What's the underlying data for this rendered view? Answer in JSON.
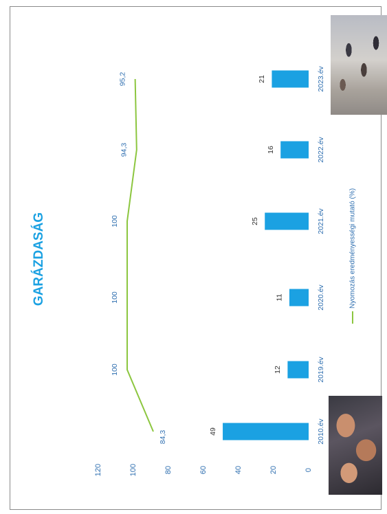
{
  "chart_data": {
    "type": "bar",
    "orientation": "rotated-90-clockwise",
    "title": "GARÁZDASÁG",
    "categories": [
      "2010.év",
      "2019.év",
      "2020.év",
      "2021.év",
      "2022.év",
      "2023.év"
    ],
    "series": [
      {
        "name": "",
        "type": "bar",
        "color": "#1ba1e2",
        "values": [
          49,
          12,
          11,
          25,
          16,
          21
        ],
        "labels": [
          "49",
          "12",
          "11",
          "25",
          "16",
          "21"
        ]
      },
      {
        "name": "Nyomozás eredményességi mutató (%)",
        "type": "line",
        "color": "#8cc63f",
        "values": [
          84.3,
          100,
          100,
          100,
          94.3,
          95.2
        ],
        "labels": [
          "84,3",
          "100",
          "100",
          "100",
          "94,3",
          "95,2"
        ]
      }
    ],
    "value_axis": {
      "ticks": [
        "0",
        "20",
        "40",
        "60",
        "80",
        "100",
        "120"
      ],
      "range": [
        0,
        120
      ]
    },
    "grid": false,
    "legend_position": "bottom"
  },
  "images": [
    {
      "icon": "clenched-fists-photo"
    },
    {
      "icon": "street-crowd-photo"
    }
  ]
}
